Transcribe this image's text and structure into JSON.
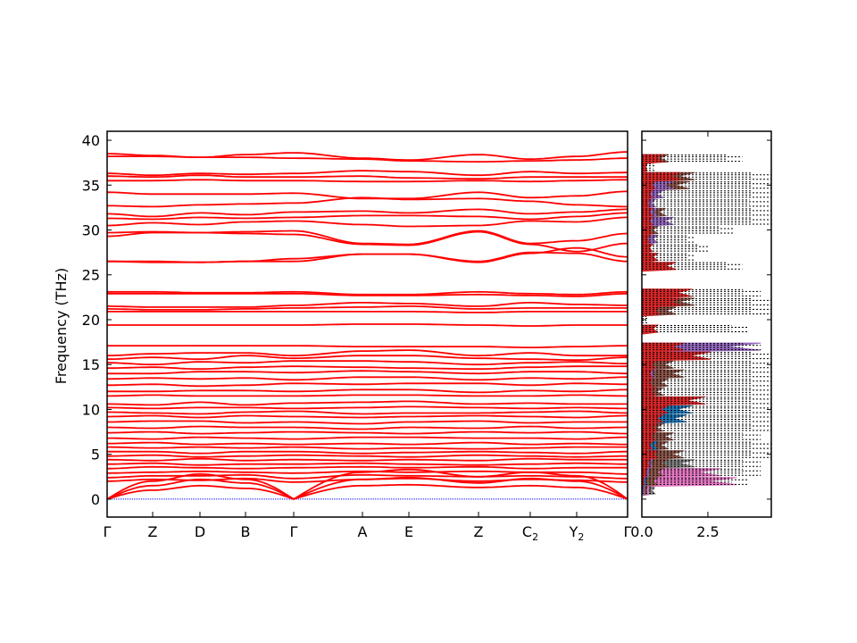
{
  "chart_data": [
    {
      "type": "line",
      "title": "",
      "xlabel": "",
      "ylabel": "Frequency (THz)",
      "ylim": [
        -2,
        41
      ],
      "yticks": [
        0,
        5,
        10,
        15,
        20,
        25,
        30,
        35,
        40
      ],
      "grid": false,
      "line_color": "#ff0000",
      "zero_line_color": "#0000ff",
      "high_symmetry_points": [
        {
          "label": "Γ",
          "sub": "",
          "distance": 0.0
        },
        {
          "label": "Z",
          "sub": "",
          "distance": 0.0875
        },
        {
          "label": "D",
          "sub": "",
          "distance": 0.1784
        },
        {
          "label": "B",
          "sub": "",
          "distance": 0.2659
        },
        {
          "label": "Γ",
          "sub": "",
          "distance": 0.3585
        },
        {
          "label": "A",
          "sub": "",
          "distance": 0.4906
        },
        {
          "label": "E",
          "sub": "",
          "distance": 0.5798
        },
        {
          "label": "Z",
          "sub": "",
          "distance": 0.7136
        },
        {
          "label": "C",
          "sub": "2",
          "distance": 0.813
        },
        {
          "label": "Y",
          "sub": "2",
          "distance": 0.9022
        },
        {
          "label": "Γ",
          "sub": "",
          "distance": 1.0
        }
      ],
      "bands": [
        [
          38.5,
          38.3,
          38.1,
          38.4,
          38.6,
          38.0,
          37.8,
          38.4,
          37.9,
          38.2,
          38.7
        ],
        [
          38.2,
          38.2,
          38.1,
          38.1,
          38.0,
          37.9,
          37.7,
          37.6,
          37.7,
          37.8,
          38.0
        ],
        [
          36.3,
          36.1,
          36.3,
          36.2,
          36.3,
          36.6,
          36.5,
          36.1,
          36.5,
          36.3,
          36.4
        ],
        [
          36.0,
          35.9,
          36.1,
          35.9,
          35.9,
          36.0,
          35.8,
          35.7,
          35.9,
          35.9,
          35.9
        ],
        [
          35.5,
          35.5,
          35.6,
          35.5,
          35.5,
          35.4,
          35.4,
          35.5,
          35.4,
          35.5,
          35.6
        ],
        [
          34.2,
          34.0,
          34.0,
          34.0,
          34.1,
          33.5,
          33.5,
          34.2,
          33.6,
          33.8,
          34.3
        ],
        [
          32.7,
          32.6,
          32.8,
          32.9,
          33.0,
          33.6,
          33.4,
          33.5,
          33.2,
          32.8,
          32.6
        ],
        [
          31.8,
          31.5,
          31.9,
          31.7,
          32.0,
          32.1,
          31.9,
          32.3,
          31.8,
          32.0,
          32.3
        ],
        [
          31.3,
          31.2,
          31.4,
          31.3,
          31.4,
          31.6,
          31.6,
          31.5,
          31.2,
          31.5,
          31.9
        ],
        [
          30.5,
          30.8,
          30.6,
          30.9,
          31.0,
          30.6,
          30.4,
          30.5,
          31.0,
          30.9,
          31.4
        ],
        [
          29.7,
          29.8,
          29.7,
          29.8,
          29.9,
          28.5,
          28.4,
          29.9,
          28.5,
          28.8,
          29.6
        ],
        [
          29.3,
          29.7,
          29.7,
          29.6,
          29.5,
          28.4,
          28.3,
          29.8,
          28.4,
          27.6,
          28.5
        ],
        [
          26.5,
          26.5,
          26.4,
          26.5,
          26.5,
          27.3,
          27.3,
          26.4,
          27.4,
          28.0,
          27.0
        ],
        [
          26.5,
          26.4,
          26.4,
          26.5,
          26.8,
          27.3,
          27.3,
          26.5,
          27.5,
          27.4,
          26.5
        ],
        [
          23.1,
          23.1,
          23.0,
          23.0,
          23.1,
          22.8,
          22.8,
          23.1,
          22.9,
          22.8,
          23.1
        ],
        [
          22.9,
          22.9,
          22.9,
          22.9,
          22.9,
          22.7,
          22.7,
          22.8,
          22.7,
          22.6,
          22.9
        ],
        [
          21.5,
          21.4,
          21.4,
          21.4,
          21.6,
          21.9,
          21.8,
          21.5,
          21.9,
          21.7,
          21.6
        ],
        [
          21.2,
          21.1,
          21.1,
          21.2,
          21.3,
          21.4,
          21.5,
          21.2,
          21.3,
          21.3,
          21.3
        ],
        [
          20.9,
          20.9,
          20.9,
          20.9,
          20.9,
          20.9,
          20.9,
          20.8,
          20.9,
          20.9,
          20.9
        ],
        [
          19.4,
          19.4,
          19.4,
          19.4,
          19.4,
          19.5,
          19.5,
          19.4,
          19.3,
          19.4,
          19.4
        ],
        [
          17.1,
          17.1,
          17.1,
          17.1,
          17.1,
          17.0,
          17.0,
          17.0,
          16.9,
          17.0,
          17.1
        ],
        [
          16.0,
          16.2,
          16.3,
          16.3,
          16.0,
          16.5,
          16.6,
          16.0,
          16.3,
          16.0,
          16.0
        ],
        [
          15.6,
          15.8,
          15.6,
          16.0,
          15.7,
          16.0,
          16.0,
          15.7,
          15.6,
          15.5,
          15.8
        ],
        [
          15.2,
          15.0,
          15.3,
          15.2,
          15.4,
          15.4,
          15.3,
          15.0,
          15.2,
          15.3,
          15.1
        ],
        [
          14.6,
          14.7,
          14.5,
          14.7,
          14.8,
          14.7,
          14.6,
          14.5,
          14.7,
          14.8,
          14.8
        ],
        [
          14.0,
          14.0,
          14.2,
          14.2,
          14.1,
          14.3,
          14.2,
          14.0,
          14.2,
          14.2,
          14.0
        ],
        [
          13.4,
          13.5,
          13.4,
          13.5,
          13.3,
          13.6,
          13.6,
          13.3,
          13.5,
          13.4,
          13.6
        ],
        [
          12.7,
          12.8,
          12.6,
          12.7,
          12.9,
          12.8,
          12.9,
          12.9,
          12.7,
          12.9,
          12.8
        ],
        [
          12.0,
          12.0,
          12.1,
          12.1,
          12.0,
          12.2,
          12.2,
          11.9,
          12.1,
          12.0,
          12.2
        ],
        [
          11.5,
          11.6,
          11.5,
          11.5,
          11.5,
          11.6,
          11.6,
          11.5,
          11.5,
          11.6,
          11.5
        ],
        [
          10.6,
          10.5,
          10.8,
          10.5,
          10.7,
          10.8,
          10.9,
          10.6,
          10.7,
          10.6,
          10.6
        ],
        [
          10.2,
          10.1,
          10.2,
          10.2,
          10.1,
          10.2,
          10.3,
          10.2,
          10.1,
          10.2,
          10.1
        ],
        [
          9.7,
          9.6,
          9.5,
          9.7,
          9.8,
          9.5,
          9.6,
          9.6,
          9.7,
          9.8,
          9.6
        ],
        [
          9.2,
          9.3,
          9.1,
          9.3,
          9.2,
          9.1,
          9.2,
          9.3,
          9.2,
          9.1,
          9.3
        ],
        [
          8.6,
          8.7,
          8.7,
          8.5,
          8.6,
          8.4,
          8.6,
          8.7,
          8.5,
          8.6,
          8.6
        ],
        [
          8.0,
          7.9,
          8.1,
          8.0,
          8.0,
          7.8,
          8.0,
          7.9,
          8.1,
          7.9,
          8.0
        ],
        [
          7.4,
          7.5,
          7.3,
          7.4,
          7.5,
          7.4,
          7.3,
          7.5,
          7.4,
          7.5,
          7.3
        ],
        [
          6.8,
          6.7,
          6.9,
          6.8,
          6.7,
          6.9,
          6.9,
          6.8,
          6.8,
          6.7,
          6.9
        ],
        [
          6.2,
          6.3,
          6.1,
          6.2,
          6.1,
          6.2,
          6.1,
          6.3,
          6.1,
          6.2,
          6.1
        ],
        [
          5.8,
          5.7,
          5.8,
          5.7,
          5.8,
          5.6,
          5.7,
          5.6,
          5.7,
          5.8,
          5.8
        ],
        [
          5.3,
          5.3,
          5.1,
          5.3,
          5.3,
          5.1,
          5.2,
          5.3,
          5.2,
          5.1,
          5.3
        ],
        [
          4.8,
          4.9,
          4.7,
          4.8,
          4.9,
          4.8,
          4.7,
          4.9,
          4.8,
          4.7,
          4.8
        ],
        [
          4.4,
          4.3,
          4.5,
          4.3,
          4.4,
          4.3,
          4.4,
          4.3,
          4.5,
          4.4,
          4.4
        ],
        [
          3.9,
          4.0,
          3.8,
          3.9,
          3.9,
          4.0,
          3.9,
          3.8,
          3.9,
          4.0,
          3.9
        ],
        [
          3.4,
          3.6,
          3.5,
          3.4,
          3.5,
          3.6,
          3.5,
          3.6,
          3.4,
          3.5,
          3.5
        ],
        [
          2.9,
          3.0,
          3.1,
          3.0,
          2.9,
          3.1,
          3.0,
          3.1,
          3.0,
          3.0,
          2.8
        ],
        [
          2.4,
          2.6,
          2.6,
          2.7,
          2.3,
          2.7,
          2.6,
          2.5,
          2.6,
          2.5,
          2.3
        ],
        [
          2.0,
          2.2,
          2.1,
          2.3,
          1.9,
          2.2,
          2.3,
          2.0,
          2.2,
          2.1,
          1.9
        ],
        [
          0,
          2.0,
          2.8,
          2.2,
          0,
          3.0,
          3.3,
          2.5,
          3.0,
          2.6,
          0
        ],
        [
          0,
          1.5,
          2.2,
          1.8,
          0,
          2.2,
          2.4,
          1.8,
          2.3,
          2.0,
          0
        ],
        [
          0,
          1.0,
          1.5,
          1.2,
          0,
          1.5,
          1.6,
          1.3,
          1.5,
          1.3,
          0
        ]
      ]
    },
    {
      "type": "area",
      "title": "",
      "xlabel": "",
      "ylabel": "",
      "xlim": [
        0,
        4.9
      ],
      "xticks": [
        "0.0",
        "2.5"
      ],
      "ylim": [
        -2,
        41
      ],
      "frequency": [
        0,
        1,
        2,
        3,
        4,
        5,
        6,
        7,
        8,
        9,
        10,
        11,
        12,
        13,
        14,
        15,
        16,
        17,
        18,
        19,
        20,
        21,
        22,
        23,
        24,
        25,
        26,
        27,
        28,
        29,
        30,
        31,
        32,
        33,
        34,
        35,
        36,
        37,
        38,
        39
      ],
      "total": {
        "color": "#000000",
        "style": "dotted",
        "values": [
          0,
          0.5,
          4.0,
          4.5,
          4.5,
          4.9,
          4.9,
          4.5,
          4.9,
          4.9,
          4.9,
          4.9,
          4.9,
          4.9,
          4.9,
          4.9,
          4.9,
          4.5,
          0,
          4.0,
          0.2,
          4.9,
          4.9,
          4.5,
          0,
          0,
          3.8,
          2.0,
          2.5,
          2.0,
          3.5,
          4.9,
          4.9,
          4.8,
          4.9,
          4.9,
          4.9,
          0.5,
          3.8,
          0
        ]
      },
      "partials": [
        {
          "color": "#7f7f7f",
          "values": [
            0,
            0.5,
            2.5,
            2.5,
            2.0,
            1.5,
            0.6,
            0.4,
            0.3,
            0.4,
            0.5,
            0.4,
            0.4,
            0.8,
            0.9,
            0.6,
            0.4,
            0.3,
            0,
            0.2,
            0,
            0.3,
            0.3,
            0.3,
            0,
            0,
            0.2,
            0.2,
            0.2,
            0.2,
            0.3,
            0.4,
            0.5,
            0.4,
            0.3,
            0.4,
            0.4,
            0.1,
            0.3,
            0
          ]
        },
        {
          "color": "#e377c2",
          "values": [
            0,
            0.3,
            3.6,
            3.0,
            0.5,
            0.2,
            0.1,
            0.2,
            0.1,
            0.6,
            0.3,
            0.2,
            0.1,
            0.1,
            0.1,
            0.1,
            0.1,
            0.1,
            0,
            0,
            0,
            0,
            0,
            0,
            0,
            0,
            0,
            0,
            0,
            0,
            0,
            0,
            0,
            0,
            0,
            0,
            0,
            0,
            0,
            0
          ]
        },
        {
          "color": "#8c564b",
          "values": [
            0,
            0.2,
            0.6,
            0.8,
            1.0,
            1.6,
            1.0,
            1.2,
            0.8,
            0.7,
            0.9,
            1.1,
            0.8,
            1.0,
            1.6,
            1.2,
            1.0,
            0.9,
            0,
            0.5,
            0,
            1.3,
            2.0,
            0.9,
            0,
            0,
            0.4,
            0.3,
            0.4,
            0.5,
            0.6,
            0.9,
            0.9,
            0.5,
            0.6,
            1.8,
            2.0,
            0.2,
            1.0,
            0
          ]
        },
        {
          "color": "#9467bd",
          "values": [
            0,
            0.1,
            0.2,
            0.3,
            0.4,
            0.3,
            0.3,
            0.4,
            0.3,
            0.5,
            0.4,
            0.4,
            0.3,
            0.4,
            0.5,
            0.4,
            0.4,
            4.5,
            0,
            0.3,
            0,
            0.6,
            0.5,
            0.4,
            0,
            0,
            0.4,
            0.2,
            0.3,
            0.6,
            0.4,
            1.2,
            0.6,
            0.5,
            0.8,
            1.2,
            0.6,
            0.1,
            0.4,
            0
          ]
        },
        {
          "color": "#1f77b4",
          "values": [
            0,
            0,
            0.2,
            0.2,
            0.3,
            0.5,
            0.6,
            0.5,
            0.6,
            1.7,
            1.9,
            0.4,
            0.2,
            0.3,
            0.2,
            0.2,
            0.2,
            0.1,
            0,
            0,
            0,
            0,
            0,
            0,
            0,
            0,
            0,
            0,
            0,
            0,
            0,
            0,
            0,
            0,
            0,
            0,
            0,
            0,
            0,
            0
          ]
        },
        {
          "color": "#d62728",
          "values": [
            0,
            0,
            0.1,
            0.2,
            0.3,
            0.6,
            0.4,
            0.5,
            0.6,
            0.8,
            1.0,
            2.4,
            0.5,
            0.4,
            0.4,
            0.5,
            2.6,
            1.6,
            0,
            0.6,
            0,
            0.7,
            1.5,
            1.9,
            0,
            0,
            1.3,
            0.6,
            0.4,
            0.3,
            0.4,
            0.4,
            0.4,
            0.3,
            0.4,
            0.5,
            1.5,
            0.2,
            0.8,
            0
          ]
        }
      ]
    }
  ]
}
